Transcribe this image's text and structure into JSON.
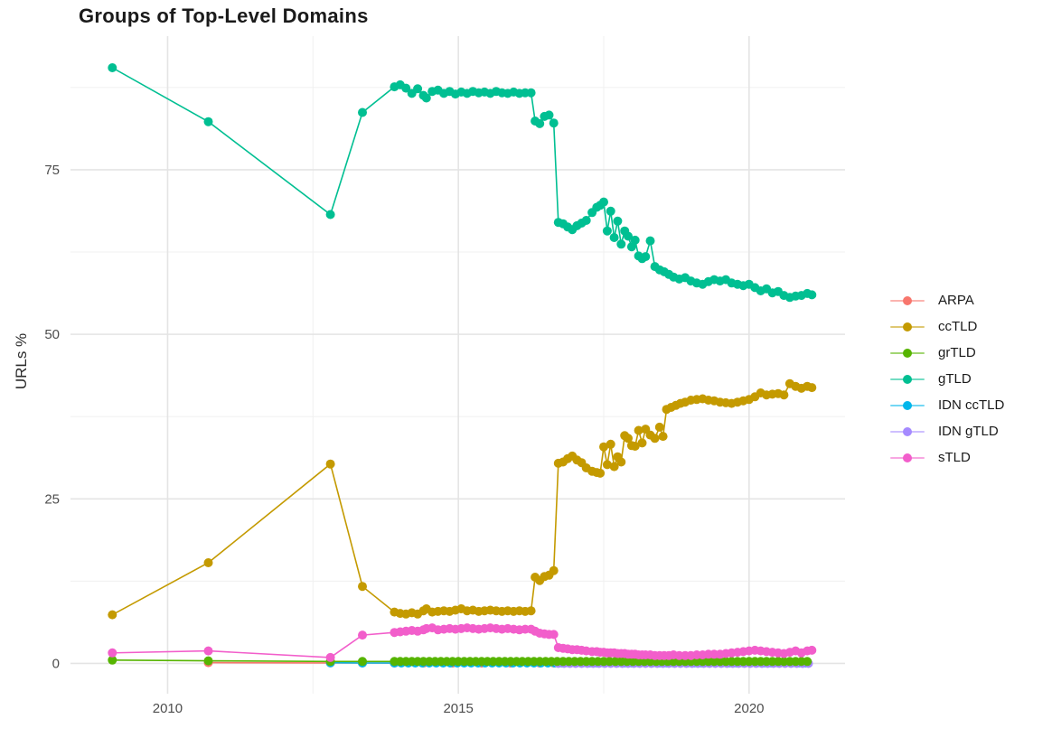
{
  "chart_data": {
    "type": "line",
    "title": "Groups of Top-Level Domains",
    "xlabel": "",
    "ylabel": "URLs %",
    "grid": "on",
    "legend_position": "right",
    "xlim": [
      2008.33,
      2021.65
    ],
    "ylim": [
      -4.6,
      95.3
    ],
    "x_ticks": [
      {
        "t": 2010,
        "label": "2010"
      },
      {
        "t": 2015,
        "label": "2015"
      },
      {
        "t": 2020,
        "label": "2020"
      }
    ],
    "x_minor": [
      2012.5,
      2017.5
    ],
    "y_ticks": [
      {
        "v": 0,
        "label": "0"
      },
      {
        "v": 25,
        "label": "25"
      },
      {
        "v": 50,
        "label": "50"
      },
      {
        "v": 75,
        "label": "75"
      }
    ],
    "y_minor": [
      12.5,
      37.5,
      62.5,
      87.5
    ],
    "draw_order": [
      "ARPA",
      "IDN ccTLD",
      "IDN gTLD",
      "grTLD",
      "ccTLD",
      "gTLD",
      "sTLD"
    ],
    "series": [
      {
        "name": "ARPA",
        "color": "#F8766D",
        "points": [
          [
            2010.7,
            0.12
          ],
          [
            2012.8,
            0.08
          ],
          [
            2013.35,
            0.06
          ],
          [
            2013.9,
            0.05
          ],
          [
            2014.4,
            0.05
          ],
          [
            2014.9,
            0.05
          ],
          [
            2015.4,
            0.05
          ],
          [
            2015.9,
            0.05
          ],
          [
            2016.4,
            0.05
          ],
          [
            2016.64,
            0.05
          ]
        ],
        "runs": []
      },
      {
        "name": "ccTLD",
        "color": "#C49A00",
        "points": [
          [
            2009.05,
            7.4
          ],
          [
            2010.7,
            15.3
          ],
          [
            2012.8,
            30.3
          ],
          [
            2013.35,
            11.7
          ],
          [
            2013.9,
            7.8
          ],
          [
            2014.0,
            7.6
          ],
          [
            2014.1,
            7.5
          ],
          [
            2014.2,
            7.7
          ],
          [
            2014.3,
            7.5
          ],
          [
            2014.4,
            8.0
          ],
          [
            2014.45,
            8.3
          ],
          [
            2014.55,
            7.8
          ],
          [
            2014.65,
            7.9
          ],
          [
            2014.75,
            8.0
          ],
          [
            2014.85,
            7.9
          ],
          [
            2014.95,
            8.1
          ],
          [
            2015.05,
            8.3
          ],
          [
            2015.15,
            8.0
          ],
          [
            2015.25,
            8.1
          ],
          [
            2015.35,
            7.9
          ],
          [
            2015.45,
            8.0
          ],
          [
            2015.55,
            8.1
          ],
          [
            2015.65,
            8.0
          ],
          [
            2015.75,
            7.9
          ],
          [
            2015.85,
            8.0
          ],
          [
            2015.95,
            7.9
          ],
          [
            2016.05,
            8.0
          ],
          [
            2016.15,
            7.9
          ],
          [
            2016.25,
            8.0
          ],
          [
            2016.32,
            13.1
          ],
          [
            2016.4,
            12.6
          ],
          [
            2016.48,
            13.2
          ],
          [
            2016.56,
            13.4
          ],
          [
            2016.64,
            14.1
          ],
          [
            2016.72,
            30.4
          ],
          [
            2016.8,
            30.6
          ],
          [
            2016.88,
            31.1
          ],
          [
            2016.96,
            31.5
          ],
          [
            2017.04,
            30.9
          ],
          [
            2017.12,
            30.5
          ],
          [
            2017.2,
            29.7
          ],
          [
            2017.3,
            29.2
          ],
          [
            2017.38,
            29.0
          ],
          [
            2017.44,
            28.9
          ],
          [
            2017.5,
            32.9
          ],
          [
            2017.56,
            30.2
          ],
          [
            2017.62,
            33.3
          ],
          [
            2017.68,
            29.9
          ],
          [
            2017.74,
            31.4
          ],
          [
            2017.8,
            30.6
          ],
          [
            2017.86,
            34.6
          ],
          [
            2017.92,
            34.2
          ],
          [
            2017.98,
            33.1
          ],
          [
            2018.04,
            33.0
          ],
          [
            2018.1,
            35.4
          ],
          [
            2018.16,
            33.5
          ],
          [
            2018.22,
            35.6
          ],
          [
            2018.3,
            34.7
          ],
          [
            2018.38,
            34.2
          ],
          [
            2018.46,
            35.9
          ],
          [
            2018.52,
            34.5
          ],
          [
            2018.58,
            38.6
          ],
          [
            2018.66,
            38.9
          ],
          [
            2018.74,
            39.2
          ],
          [
            2018.82,
            39.5
          ],
          [
            2018.9,
            39.7
          ],
          [
            2019.0,
            40.0
          ],
          [
            2019.1,
            40.1
          ],
          [
            2019.2,
            40.2
          ],
          [
            2019.3,
            40.0
          ],
          [
            2019.4,
            39.9
          ],
          [
            2019.5,
            39.7
          ],
          [
            2019.6,
            39.6
          ],
          [
            2019.7,
            39.5
          ],
          [
            2019.8,
            39.7
          ],
          [
            2019.9,
            39.9
          ],
          [
            2020.0,
            40.1
          ],
          [
            2020.1,
            40.5
          ],
          [
            2020.2,
            41.1
          ],
          [
            2020.3,
            40.8
          ],
          [
            2020.4,
            40.9
          ],
          [
            2020.5,
            41.0
          ],
          [
            2020.6,
            40.8
          ],
          [
            2020.7,
            42.5
          ],
          [
            2020.8,
            42.1
          ],
          [
            2020.9,
            41.8
          ],
          [
            2021.0,
            42.1
          ],
          [
            2021.08,
            41.9
          ]
        ],
        "runs": []
      },
      {
        "name": "grTLD",
        "color": "#56B400",
        "points": [
          [
            2009.05,
            0.5
          ],
          [
            2010.7,
            0.4
          ],
          [
            2012.8,
            0.3
          ],
          [
            2013.35,
            0.3
          ]
        ],
        "runs": [
          {
            "from": 2013.9,
            "to": 2021.08,
            "step": 0.1,
            "value": 0.3
          }
        ]
      },
      {
        "name": "gTLD",
        "color": "#00BF92",
        "points": [
          [
            2009.05,
            90.5
          ],
          [
            2010.7,
            82.3
          ],
          [
            2012.8,
            68.2
          ],
          [
            2013.35,
            83.7
          ],
          [
            2013.9,
            87.6
          ],
          [
            2014.0,
            87.9
          ],
          [
            2014.1,
            87.4
          ],
          [
            2014.2,
            86.6
          ],
          [
            2014.3,
            87.3
          ],
          [
            2014.4,
            86.3
          ],
          [
            2014.45,
            85.9
          ],
          [
            2014.55,
            86.9
          ],
          [
            2014.65,
            87.1
          ],
          [
            2014.75,
            86.6
          ],
          [
            2014.85,
            86.9
          ],
          [
            2014.95,
            86.5
          ],
          [
            2015.05,
            86.8
          ],
          [
            2015.15,
            86.6
          ],
          [
            2015.25,
            86.9
          ],
          [
            2015.35,
            86.7
          ],
          [
            2015.45,
            86.8
          ],
          [
            2015.55,
            86.6
          ],
          [
            2015.65,
            86.9
          ],
          [
            2015.75,
            86.7
          ],
          [
            2015.85,
            86.6
          ],
          [
            2015.95,
            86.8
          ],
          [
            2016.05,
            86.6
          ],
          [
            2016.15,
            86.7
          ],
          [
            2016.25,
            86.7
          ],
          [
            2016.32,
            82.4
          ],
          [
            2016.4,
            82.0
          ],
          [
            2016.48,
            83.1
          ],
          [
            2016.56,
            83.3
          ],
          [
            2016.64,
            82.1
          ],
          [
            2016.72,
            67.0
          ],
          [
            2016.8,
            66.8
          ],
          [
            2016.88,
            66.3
          ],
          [
            2016.96,
            65.9
          ],
          [
            2017.04,
            66.5
          ],
          [
            2017.12,
            66.9
          ],
          [
            2017.2,
            67.3
          ],
          [
            2017.3,
            68.5
          ],
          [
            2017.38,
            69.3
          ],
          [
            2017.44,
            69.6
          ],
          [
            2017.5,
            70.1
          ],
          [
            2017.56,
            65.7
          ],
          [
            2017.62,
            68.7
          ],
          [
            2017.68,
            64.7
          ],
          [
            2017.74,
            67.2
          ],
          [
            2017.8,
            63.7
          ],
          [
            2017.86,
            65.7
          ],
          [
            2017.92,
            64.9
          ],
          [
            2017.98,
            63.3
          ],
          [
            2018.04,
            64.3
          ],
          [
            2018.1,
            61.9
          ],
          [
            2018.16,
            61.5
          ],
          [
            2018.22,
            61.8
          ],
          [
            2018.3,
            64.2
          ],
          [
            2018.38,
            60.3
          ],
          [
            2018.46,
            59.8
          ],
          [
            2018.54,
            59.5
          ],
          [
            2018.62,
            59.1
          ],
          [
            2018.7,
            58.7
          ],
          [
            2018.8,
            58.4
          ],
          [
            2018.9,
            58.6
          ],
          [
            2019.0,
            58.1
          ],
          [
            2019.1,
            57.8
          ],
          [
            2019.2,
            57.6
          ],
          [
            2019.3,
            58.0
          ],
          [
            2019.4,
            58.3
          ],
          [
            2019.5,
            58.1
          ],
          [
            2019.6,
            58.3
          ],
          [
            2019.7,
            57.8
          ],
          [
            2019.8,
            57.6
          ],
          [
            2019.9,
            57.4
          ],
          [
            2020.0,
            57.6
          ],
          [
            2020.1,
            57.1
          ],
          [
            2020.2,
            56.6
          ],
          [
            2020.3,
            56.9
          ],
          [
            2020.4,
            56.3
          ],
          [
            2020.5,
            56.5
          ],
          [
            2020.6,
            55.9
          ],
          [
            2020.7,
            55.6
          ],
          [
            2020.8,
            55.8
          ],
          [
            2020.9,
            55.9
          ],
          [
            2021.0,
            56.2
          ],
          [
            2021.08,
            56.0
          ]
        ],
        "runs": []
      },
      {
        "name": "IDN ccTLD",
        "color": "#00B6EB",
        "points": [
          [
            2012.8,
            0.1
          ],
          [
            2013.35,
            0.07
          ]
        ],
        "runs": [
          {
            "from": 2013.9,
            "to": 2021.08,
            "step": 0.12,
            "value": 0.06
          }
        ]
      },
      {
        "name": "IDN gTLD",
        "color": "#A58AFF",
        "points": [],
        "runs": [
          {
            "from": 2016.72,
            "to": 2021.08,
            "step": 0.1,
            "value": 0.0
          }
        ]
      },
      {
        "name": "sTLD",
        "color": "#F25ECB",
        "points": [
          [
            2009.05,
            1.6
          ],
          [
            2010.7,
            1.9
          ],
          [
            2012.8,
            0.9
          ],
          [
            2013.35,
            4.3
          ],
          [
            2013.9,
            4.7
          ],
          [
            2014.0,
            4.8
          ],
          [
            2014.1,
            4.9
          ],
          [
            2014.2,
            5.0
          ],
          [
            2014.3,
            4.9
          ],
          [
            2014.4,
            5.1
          ],
          [
            2014.45,
            5.3
          ],
          [
            2014.55,
            5.4
          ],
          [
            2014.65,
            5.1
          ],
          [
            2014.75,
            5.2
          ],
          [
            2014.85,
            5.3
          ],
          [
            2014.95,
            5.2
          ],
          [
            2015.05,
            5.3
          ],
          [
            2015.15,
            5.4
          ],
          [
            2015.25,
            5.3
          ],
          [
            2015.35,
            5.2
          ],
          [
            2015.45,
            5.3
          ],
          [
            2015.55,
            5.4
          ],
          [
            2015.65,
            5.3
          ],
          [
            2015.75,
            5.2
          ],
          [
            2015.85,
            5.3
          ],
          [
            2015.95,
            5.2
          ],
          [
            2016.05,
            5.1
          ],
          [
            2016.15,
            5.2
          ],
          [
            2016.25,
            5.2
          ],
          [
            2016.32,
            4.9
          ],
          [
            2016.4,
            4.6
          ],
          [
            2016.48,
            4.5
          ],
          [
            2016.56,
            4.4
          ],
          [
            2016.64,
            4.4
          ],
          [
            2016.72,
            2.4
          ],
          [
            2016.8,
            2.3
          ],
          [
            2016.88,
            2.2
          ],
          [
            2016.96,
            2.1
          ],
          [
            2017.04,
            2.1
          ],
          [
            2017.12,
            2.0
          ],
          [
            2017.2,
            1.9
          ],
          [
            2017.3,
            1.8
          ],
          [
            2017.38,
            1.8
          ],
          [
            2017.44,
            1.7
          ],
          [
            2017.5,
            1.7
          ],
          [
            2017.56,
            1.6
          ],
          [
            2017.62,
            1.6
          ],
          [
            2017.68,
            1.6
          ],
          [
            2017.74,
            1.5
          ],
          [
            2017.8,
            1.5
          ],
          [
            2017.86,
            1.5
          ],
          [
            2017.92,
            1.4
          ],
          [
            2017.98,
            1.4
          ],
          [
            2018.04,
            1.4
          ],
          [
            2018.1,
            1.3
          ],
          [
            2018.16,
            1.3
          ],
          [
            2018.22,
            1.3
          ],
          [
            2018.3,
            1.3
          ],
          [
            2018.38,
            1.2
          ],
          [
            2018.46,
            1.2
          ],
          [
            2018.54,
            1.2
          ],
          [
            2018.62,
            1.2
          ],
          [
            2018.7,
            1.3
          ],
          [
            2018.8,
            1.2
          ],
          [
            2018.9,
            1.2
          ],
          [
            2019.0,
            1.2
          ],
          [
            2019.1,
            1.3
          ],
          [
            2019.2,
            1.3
          ],
          [
            2019.3,
            1.4
          ],
          [
            2019.4,
            1.4
          ],
          [
            2019.5,
            1.4
          ],
          [
            2019.6,
            1.5
          ],
          [
            2019.7,
            1.6
          ],
          [
            2019.8,
            1.7
          ],
          [
            2019.9,
            1.8
          ],
          [
            2020.0,
            1.9
          ],
          [
            2020.1,
            2.0
          ],
          [
            2020.2,
            1.9
          ],
          [
            2020.3,
            1.8
          ],
          [
            2020.4,
            1.7
          ],
          [
            2020.5,
            1.6
          ],
          [
            2020.6,
            1.5
          ],
          [
            2020.7,
            1.7
          ],
          [
            2020.8,
            1.9
          ],
          [
            2020.9,
            1.6
          ],
          [
            2021.0,
            1.9
          ],
          [
            2021.08,
            2.0
          ]
        ],
        "runs": []
      }
    ]
  }
}
